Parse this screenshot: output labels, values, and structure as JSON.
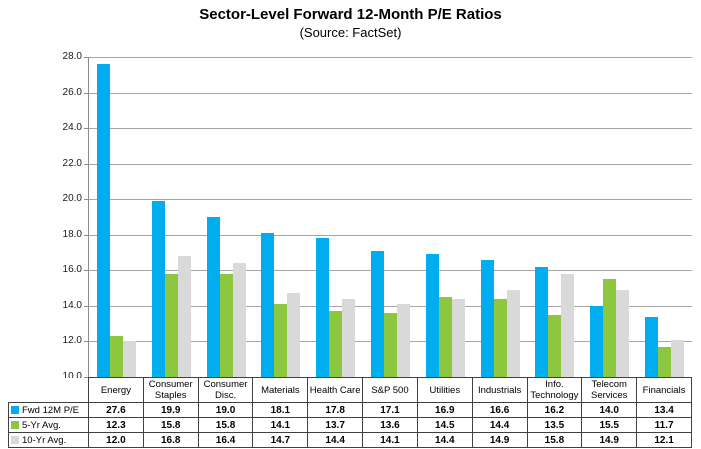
{
  "header": {
    "title": "Sector-Level Forward 12-Month P/E Ratios",
    "subtitle": "(Source: FactSet)"
  },
  "colors": {
    "fwd_12m": "#00AEEF",
    "avg_5yr": "#8DC63F",
    "avg_10yr": "#D9D9D9",
    "gridline": "#A6A6A6",
    "axis": "#8C8C8C",
    "table_border": "#404040",
    "text": "#000000",
    "background": "#FFFFFF"
  },
  "chart_data": {
    "type": "bar",
    "title": "Sector-Level Forward 12-Month P/E Ratios",
    "subtitle": "(Source: FactSet)",
    "categories": [
      "Energy",
      "Consumer Staples",
      "Consumer Disc.",
      "Materials",
      "Health Care",
      "S&P 500",
      "Utilities",
      "Industrials",
      "Info. Technology",
      "Telecom Services",
      "Financials"
    ],
    "series": [
      {
        "name": "Fwd 12M P/E",
        "color": "#00AEEF",
        "values": [
          27.6,
          19.9,
          19.0,
          18.1,
          17.8,
          17.1,
          16.9,
          16.6,
          16.2,
          14.0,
          13.4
        ]
      },
      {
        "name": "5-Yr Avg.",
        "color": "#8DC63F",
        "values": [
          12.3,
          15.8,
          15.8,
          14.1,
          13.7,
          13.6,
          14.5,
          14.4,
          13.5,
          15.5,
          11.7
        ]
      },
      {
        "name": "10-Yr Avg.",
        "color": "#D9D9D9",
        "values": [
          12.0,
          16.8,
          16.4,
          14.7,
          14.4,
          14.1,
          14.4,
          14.9,
          15.8,
          14.9,
          12.1
        ]
      }
    ],
    "xlabel": "",
    "ylabel": "",
    "ylim": [
      10.0,
      28.0
    ],
    "ytick_step": 2.0,
    "ytick_format": "one_decimal",
    "grid": true,
    "legend_position": "table-left",
    "data_table_shown": true
  }
}
